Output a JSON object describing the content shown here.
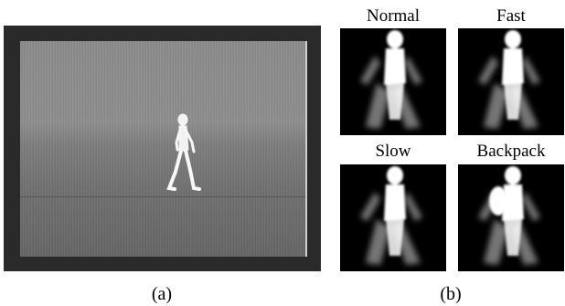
{
  "panel_a": {
    "caption": "(a)"
  },
  "panel_b": {
    "caption": "(b)",
    "items": [
      {
        "label": "Normal",
        "variant": "normal"
      },
      {
        "label": "Fast",
        "variant": "fast"
      },
      {
        "label": "Slow",
        "variant": "slow"
      },
      {
        "label": "Backpack",
        "variant": "backpack"
      }
    ]
  }
}
